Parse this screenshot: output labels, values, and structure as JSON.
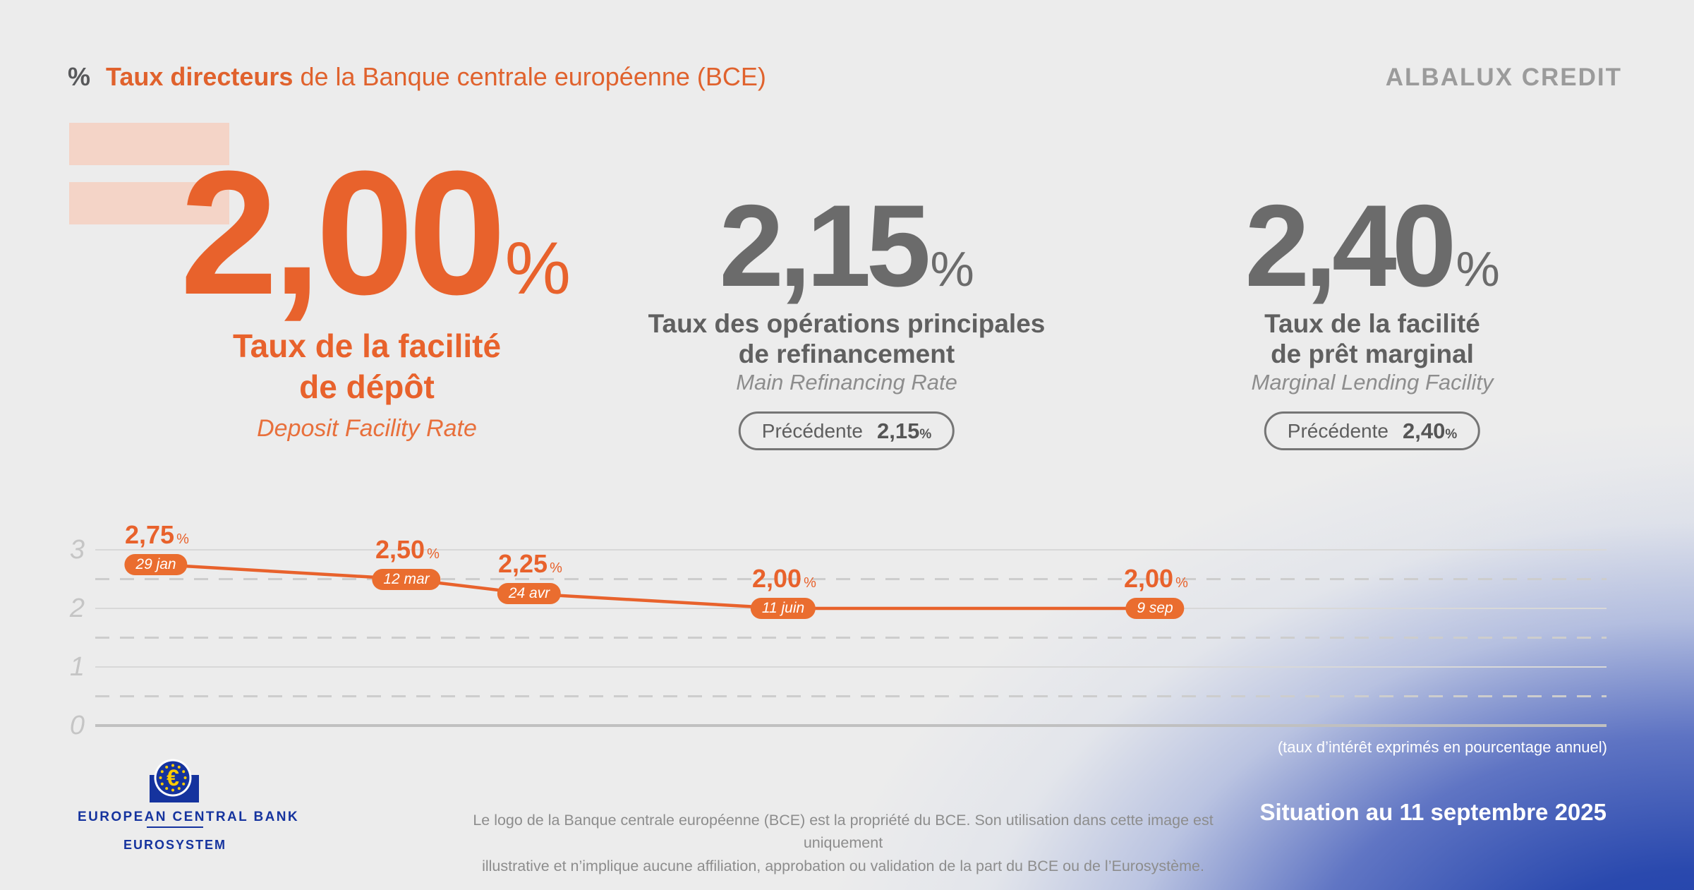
{
  "pct": "%",
  "header": {
    "title_bold": "Taux directeurs",
    "title_rest": "de la Banque centrale européenne (BCE)",
    "brand": "ALBALUX CREDIT"
  },
  "rates": [
    {
      "value": "2,00",
      "title1": "Taux de la facilité",
      "title2": "de dépôt",
      "subtitle": "Deposit Facility Rate"
    },
    {
      "value": "2,15",
      "title1": "Taux des opérations principales",
      "title2": "de refinancement",
      "subtitle": "Main Refinancing Rate",
      "previous_label": "Précédente",
      "previous_value": "2,15"
    },
    {
      "value": "2,40",
      "title1": "Taux de la facilité",
      "title2": "de prêt marginal",
      "subtitle": "Marginal Lending Facility",
      "previous_label": "Précédente",
      "previous_value": "2,40"
    }
  ],
  "chart_data": {
    "type": "line",
    "x": [
      "29 jan",
      "12 mar",
      "24 avr",
      "11 juin",
      "9 sep"
    ],
    "values": [
      2.75,
      2.5,
      2.25,
      2.0,
      2.0
    ],
    "points": [
      {
        "date": "29 jan",
        "label": "2,75"
      },
      {
        "date": "12 mar",
        "label": "2,50"
      },
      {
        "date": "24 avr",
        "label": "2,25"
      },
      {
        "date": "11 juin",
        "label": "2,00"
      },
      {
        "date": "9 sep",
        "label": "2,00"
      }
    ],
    "yticks": [
      3,
      2,
      1,
      0
    ],
    "ylim": [
      0,
      3
    ],
    "gridlines": "solid at integers, dashed at halves",
    "legend_position": "none",
    "line_color": "#e8622c"
  },
  "footer": {
    "ecb_euro": "€",
    "ecb_line1": "EUROPEAN CENTRAL BANK",
    "ecb_line2": "EUROSYSTEM",
    "disclaimer1": "Le logo de la Banque centrale européenne (BCE) est la propriété du BCE. Son utilisation dans cette image est uniquement",
    "disclaimer2": "illustrative et n’implique aucune affiliation, approbation ou validation de la part du BCE ou de l’Eurosystème.",
    "note": "(taux d’intérêt exprimés en pourcentage annuel)",
    "situation": "Situation au 11 septembre 2025"
  },
  "colors": {
    "accent_orange": "#e8622c",
    "pill_orange": "#ea6d2f",
    "bar_pink": "#f4d4c7",
    "big_gray": "#6b6b6b",
    "brand_gray": "#9b9b9b",
    "ecb_blue": "#15339e",
    "star_yellow": "#ffcc00",
    "deep_blue": "#1c3ea9"
  }
}
